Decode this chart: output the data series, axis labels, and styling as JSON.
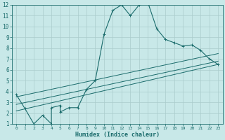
{
  "xlabel": "Humidex (Indice chaleur)",
  "bg_color": "#c8e8e8",
  "line_color": "#1a6b6b",
  "grid_color": "#aacccc",
  "xlim": [
    -0.5,
    23.5
  ],
  "ylim": [
    1,
    12
  ],
  "xticks": [
    0,
    1,
    2,
    3,
    4,
    5,
    6,
    7,
    8,
    9,
    10,
    11,
    12,
    13,
    14,
    15,
    16,
    17,
    18,
    19,
    20,
    21,
    22,
    23
  ],
  "yticks": [
    1,
    2,
    3,
    4,
    5,
    6,
    7,
    8,
    9,
    10,
    11,
    12
  ],
  "main_x": [
    0,
    1,
    2,
    3,
    4,
    4,
    5,
    5,
    6,
    7,
    8,
    9,
    10,
    11,
    12,
    13,
    14,
    15,
    15,
    16,
    17,
    18,
    19,
    20,
    21,
    22,
    23
  ],
  "main_y": [
    3.7,
    2.4,
    1.0,
    1.8,
    1.0,
    2.5,
    2.7,
    2.1,
    2.5,
    2.5,
    4.2,
    5.0,
    9.3,
    11.5,
    12.0,
    11.0,
    12.0,
    12.2,
    12.2,
    9.8,
    8.8,
    8.5,
    8.2,
    8.3,
    7.8,
    7.0,
    6.5
  ],
  "trend1_x": [
    0,
    23
  ],
  "trend1_y": [
    3.5,
    7.5
  ],
  "trend2_x": [
    0,
    23
  ],
  "trend2_y": [
    2.8,
    6.8
  ],
  "trend3_x": [
    0,
    23
  ],
  "trend3_y": [
    2.2,
    6.5
  ]
}
